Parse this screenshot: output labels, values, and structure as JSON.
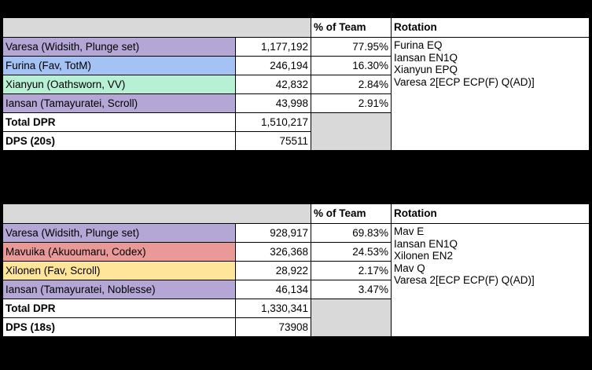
{
  "colors": {
    "purple": "#b4a7d6",
    "blue": "#a4c2f4",
    "green": "#b7f0d4",
    "red": "#ea9999",
    "yellow": "#ffe599",
    "header_gray": "#d9d9d9"
  },
  "table1": {
    "header": {
      "pct": "% of Team",
      "rotation": "Rotation"
    },
    "rows": [
      {
        "name": "Varesa (Widsith, Plunge set)",
        "dpr": "1,177,192",
        "pct": "77.95%",
        "color": "#b4a7d6"
      },
      {
        "name": "Furina (Fav, TotM)",
        "dpr": "246,194",
        "pct": "16.30%",
        "color": "#a4c2f4"
      },
      {
        "name": "Xianyun (Oathsworn, VV)",
        "dpr": "42,832",
        "pct": "2.84%",
        "color": "#b7f0d4"
      },
      {
        "name": "Iansan (Tamayuratei, Scroll)",
        "dpr": "43,998",
        "pct": "2.91%",
        "color": "#b4a7d6"
      }
    ],
    "total": {
      "label": "Total DPR",
      "value": "1,510,217"
    },
    "dps": {
      "label": "DPS (20s)",
      "value": "75511"
    },
    "rotation": [
      "Furina EQ",
      "Iansan EN1Q",
      "Xianyun EPQ",
      "Varesa 2[ECP ECP(F) Q(AD)]"
    ]
  },
  "table2": {
    "header": {
      "pct": "% of Team",
      "rotation": "Rotation"
    },
    "rows": [
      {
        "name": "Varesa (Widsith, Plunge set)",
        "dpr": "928,917",
        "pct": "69.83%",
        "color": "#b4a7d6"
      },
      {
        "name": "Mavuika (Akuoumaru, Codex)",
        "dpr": "326,368",
        "pct": "24.53%",
        "color": "#ea9999"
      },
      {
        "name": "Xilonen (Fav, Scroll)",
        "dpr": "28,922",
        "pct": "2.17%",
        "color": "#ffe599"
      },
      {
        "name": "Iansan (Tamayuratei, Noblesse)",
        "dpr": "46,134",
        "pct": "3.47%",
        "color": "#b4a7d6"
      }
    ],
    "total": {
      "label": "Total DPR",
      "value": "1,330,341"
    },
    "dps": {
      "label": "DPS (18s)",
      "value": "73908"
    },
    "rotation": [
      "Mav E",
      "Iansan EN1Q",
      "Xilonen EN2",
      "Mav Q",
      "Varesa 2[ECP ECP(F) Q(AD)]"
    ]
  }
}
